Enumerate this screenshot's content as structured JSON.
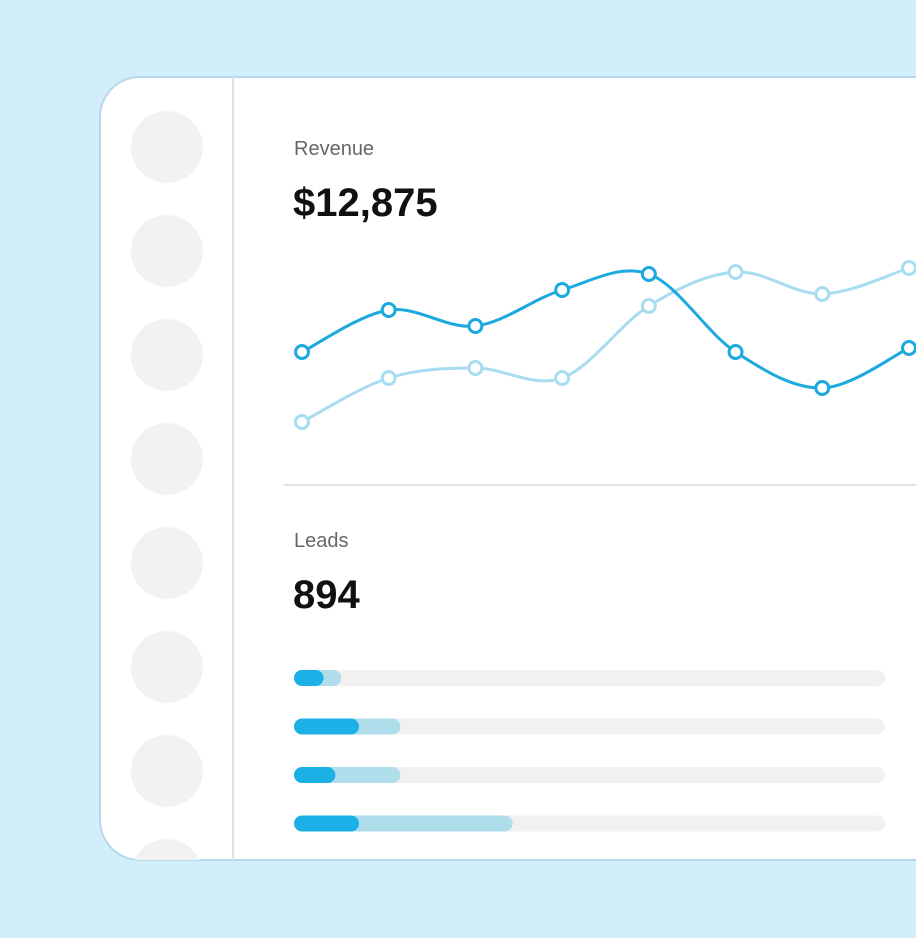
{
  "revenue": {
    "title": "Revenue",
    "value": "$12,875",
    "chart": {
      "type": "line",
      "categories": [
        null,
        null,
        null,
        null,
        null,
        null,
        null,
        null
      ],
      "ylim": [
        0,
        100
      ],
      "series": [
        {
          "color": "#a8dcf0",
          "values": [
            14,
            36,
            41,
            36,
            72,
            89,
            78,
            91
          ]
        },
        {
          "color": "#1ba9df",
          "values": [
            49,
            70,
            62,
            80,
            88,
            49,
            31,
            51
          ]
        }
      ]
    }
  },
  "leads": {
    "title": "Leads",
    "value": "894",
    "chart": {
      "type": "bar",
      "orientation": "horizontal",
      "categories": [
        null,
        null,
        null,
        null
      ],
      "xlim": [
        0,
        100
      ],
      "series": [
        {
          "color": "#b0ddec",
          "values": [
            8,
            18,
            18,
            37
          ]
        },
        {
          "color": "#1bb0e6",
          "values": [
            5,
            11,
            7,
            11
          ]
        }
      ]
    }
  }
}
